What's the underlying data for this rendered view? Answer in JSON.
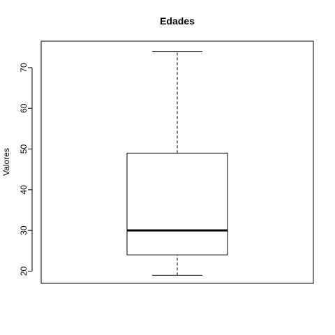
{
  "chart_data": {
    "type": "boxplot",
    "title": "Edades",
    "xlabel": "",
    "ylabel": "Valores",
    "ylim": [
      17,
      76.5
    ],
    "yticks": [
      20,
      30,
      40,
      50,
      60,
      70
    ],
    "ytick_labels": [
      "20",
      "30",
      "40",
      "50",
      "60",
      "70"
    ],
    "grid": false,
    "box": {
      "whisker_low": 19,
      "q1": 24,
      "median": 30,
      "q3": 49,
      "whisker_high": 74
    }
  }
}
